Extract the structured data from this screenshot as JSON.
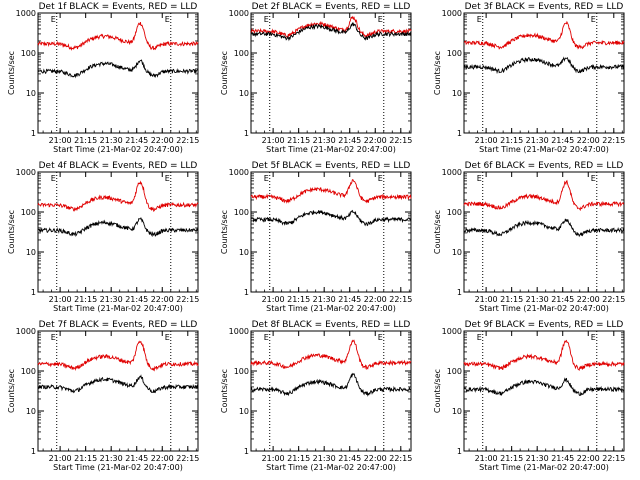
{
  "chart_data": [
    {
      "type": "line",
      "title": "Det 1f BLACK = Events, RED = LLD",
      "xlabel": "Start Time (21-Mar-02 20:47:00)",
      "ylabel": "Counts/sec",
      "yscale": "log",
      "ylim": [
        1,
        1000
      ],
      "xticks": [
        "21:00",
        "21:15",
        "21:30",
        "21:45",
        "22:00",
        "22:15"
      ],
      "yticks": [
        "1",
        "10",
        "100",
        "1000"
      ],
      "markers": [
        {
          "label": "E",
          "time": "20:58"
        },
        {
          "label": "E",
          "time": "22:05"
        }
      ],
      "series": [
        {
          "color": "#e00000",
          "baseline": 170,
          "peak": 560
        },
        {
          "color": "#000000",
          "baseline": 35,
          "peak": 65
        }
      ]
    },
    {
      "type": "line",
      "title": "Det 2f BLACK = Events, RED = LLD",
      "xlabel": "Start Time (21-Mar-02 20:47:00)",
      "ylabel": "Counts/sec",
      "yscale": "log",
      "ylim": [
        1,
        1000
      ],
      "xticks": [
        "21:00",
        "21:15",
        "21:30",
        "21:45",
        "22:00",
        "22:15"
      ],
      "yticks": [
        "1",
        "10",
        "100",
        "1000"
      ],
      "markers": [
        {
          "label": "E",
          "time": "20:58"
        },
        {
          "label": "E",
          "time": "22:05"
        }
      ],
      "series": [
        {
          "color": "#e00000",
          "baseline": 350,
          "peak": 780
        },
        {
          "color": "#000000",
          "baseline": 300,
          "peak": 520
        }
      ]
    },
    {
      "type": "line",
      "title": "Det 3f BLACK = Events, RED = LLD",
      "xlabel": "Start Time (21-Mar-02 20:47:00)",
      "ylabel": "Counts/sec",
      "yscale": "log",
      "ylim": [
        1,
        1000
      ],
      "xticks": [
        "21:00",
        "21:15",
        "21:30",
        "21:45",
        "22:00",
        "22:15"
      ],
      "yticks": [
        "1",
        "10",
        "100",
        "1000"
      ],
      "markers": [
        {
          "label": "E",
          "time": "20:58"
        },
        {
          "label": "E",
          "time": "22:05"
        }
      ],
      "series": [
        {
          "color": "#e00000",
          "baseline": 180,
          "peak": 560
        },
        {
          "color": "#000000",
          "baseline": 45,
          "peak": 75
        }
      ]
    },
    {
      "type": "line",
      "title": "Det 4f BLACK = Events, RED = LLD",
      "xlabel": "Start Time (21-Mar-02 20:47:00)",
      "ylabel": "Counts/sec",
      "yscale": "log",
      "ylim": [
        1,
        1000
      ],
      "xticks": [
        "21:00",
        "21:15",
        "21:30",
        "21:45",
        "22:00",
        "22:15"
      ],
      "yticks": [
        "1",
        "10",
        "100",
        "1000"
      ],
      "markers": [
        {
          "label": "E",
          "time": "20:58"
        },
        {
          "label": "E",
          "time": "22:05"
        }
      ],
      "series": [
        {
          "color": "#e00000",
          "baseline": 150,
          "peak": 560
        },
        {
          "color": "#000000",
          "baseline": 35,
          "peak": 65
        }
      ]
    },
    {
      "type": "line",
      "title": "Det 5f BLACK = Events, RED = LLD",
      "xlabel": "Start Time (21-Mar-02 20:47:00)",
      "ylabel": "Counts/sec",
      "yscale": "log",
      "ylim": [
        1,
        1000
      ],
      "xticks": [
        "21:00",
        "21:15",
        "21:30",
        "21:45",
        "22:00",
        "22:15"
      ],
      "yticks": [
        "1",
        "10",
        "100",
        "1000"
      ],
      "markers": [
        {
          "label": "E",
          "time": "20:58"
        },
        {
          "label": "E",
          "time": "22:05"
        }
      ],
      "series": [
        {
          "color": "#e00000",
          "baseline": 240,
          "peak": 620
        },
        {
          "color": "#000000",
          "baseline": 65,
          "peak": 100
        }
      ]
    },
    {
      "type": "line",
      "title": "Det 6f BLACK = Events, RED = LLD",
      "xlabel": "Start Time (21-Mar-02 20:47:00)",
      "ylabel": "Counts/sec",
      "yscale": "log",
      "ylim": [
        1,
        1000
      ],
      "xticks": [
        "21:00",
        "21:15",
        "21:30",
        "21:45",
        "22:00",
        "22:15"
      ],
      "yticks": [
        "1",
        "10",
        "100",
        "1000"
      ],
      "markers": [
        {
          "label": "E",
          "time": "20:58"
        },
        {
          "label": "E",
          "time": "22:05"
        }
      ],
      "series": [
        {
          "color": "#e00000",
          "baseline": 160,
          "peak": 560
        },
        {
          "color": "#000000",
          "baseline": 35,
          "peak": 65
        }
      ]
    },
    {
      "type": "line",
      "title": "Det 7f BLACK = Events, RED = LLD",
      "xlabel": "Start Time (21-Mar-02 20:47:00)",
      "ylabel": "Counts/sec",
      "yscale": "log",
      "ylim": [
        1,
        1000
      ],
      "xticks": [
        "21:00",
        "21:15",
        "21:30",
        "21:45",
        "22:00",
        "22:15"
      ],
      "yticks": [
        "1",
        "10",
        "100",
        "1000"
      ],
      "markers": [
        {
          "label": "E",
          "time": "20:58"
        },
        {
          "label": "E",
          "time": "22:05"
        }
      ],
      "series": [
        {
          "color": "#e00000",
          "baseline": 150,
          "peak": 560
        },
        {
          "color": "#000000",
          "baseline": 40,
          "peak": 70
        }
      ]
    },
    {
      "type": "line",
      "title": "Det 8f BLACK = Events, RED = LLD",
      "xlabel": "Start Time (21-Mar-02 20:47:00)",
      "ylabel": "Counts/sec",
      "yscale": "log",
      "ylim": [
        1,
        1000
      ],
      "xticks": [
        "21:00",
        "21:15",
        "21:30",
        "21:45",
        "22:00",
        "22:15"
      ],
      "yticks": [
        "1",
        "10",
        "100",
        "1000"
      ],
      "markers": [
        {
          "label": "E",
          "time": "20:58"
        },
        {
          "label": "E",
          "time": "22:05"
        }
      ],
      "series": [
        {
          "color": "#e00000",
          "baseline": 160,
          "peak": 560
        },
        {
          "color": "#000000",
          "baseline": 35,
          "peak": 80
        }
      ]
    },
    {
      "type": "line",
      "title": "Det 9f BLACK = Events, RED = LLD",
      "xlabel": "Start Time (21-Mar-02 20:47:00)",
      "ylabel": "Counts/sec",
      "yscale": "log",
      "ylim": [
        1,
        1000
      ],
      "xticks": [
        "21:00",
        "21:15",
        "21:30",
        "21:45",
        "22:00",
        "22:15"
      ],
      "yticks": [
        "1",
        "10",
        "100",
        "1000"
      ],
      "markers": [
        {
          "label": "E",
          "time": "20:58"
        },
        {
          "label": "E",
          "time": "22:05"
        }
      ],
      "series": [
        {
          "color": "#e00000",
          "baseline": 150,
          "peak": 560
        },
        {
          "color": "#000000",
          "baseline": 35,
          "peak": 60
        }
      ]
    }
  ]
}
